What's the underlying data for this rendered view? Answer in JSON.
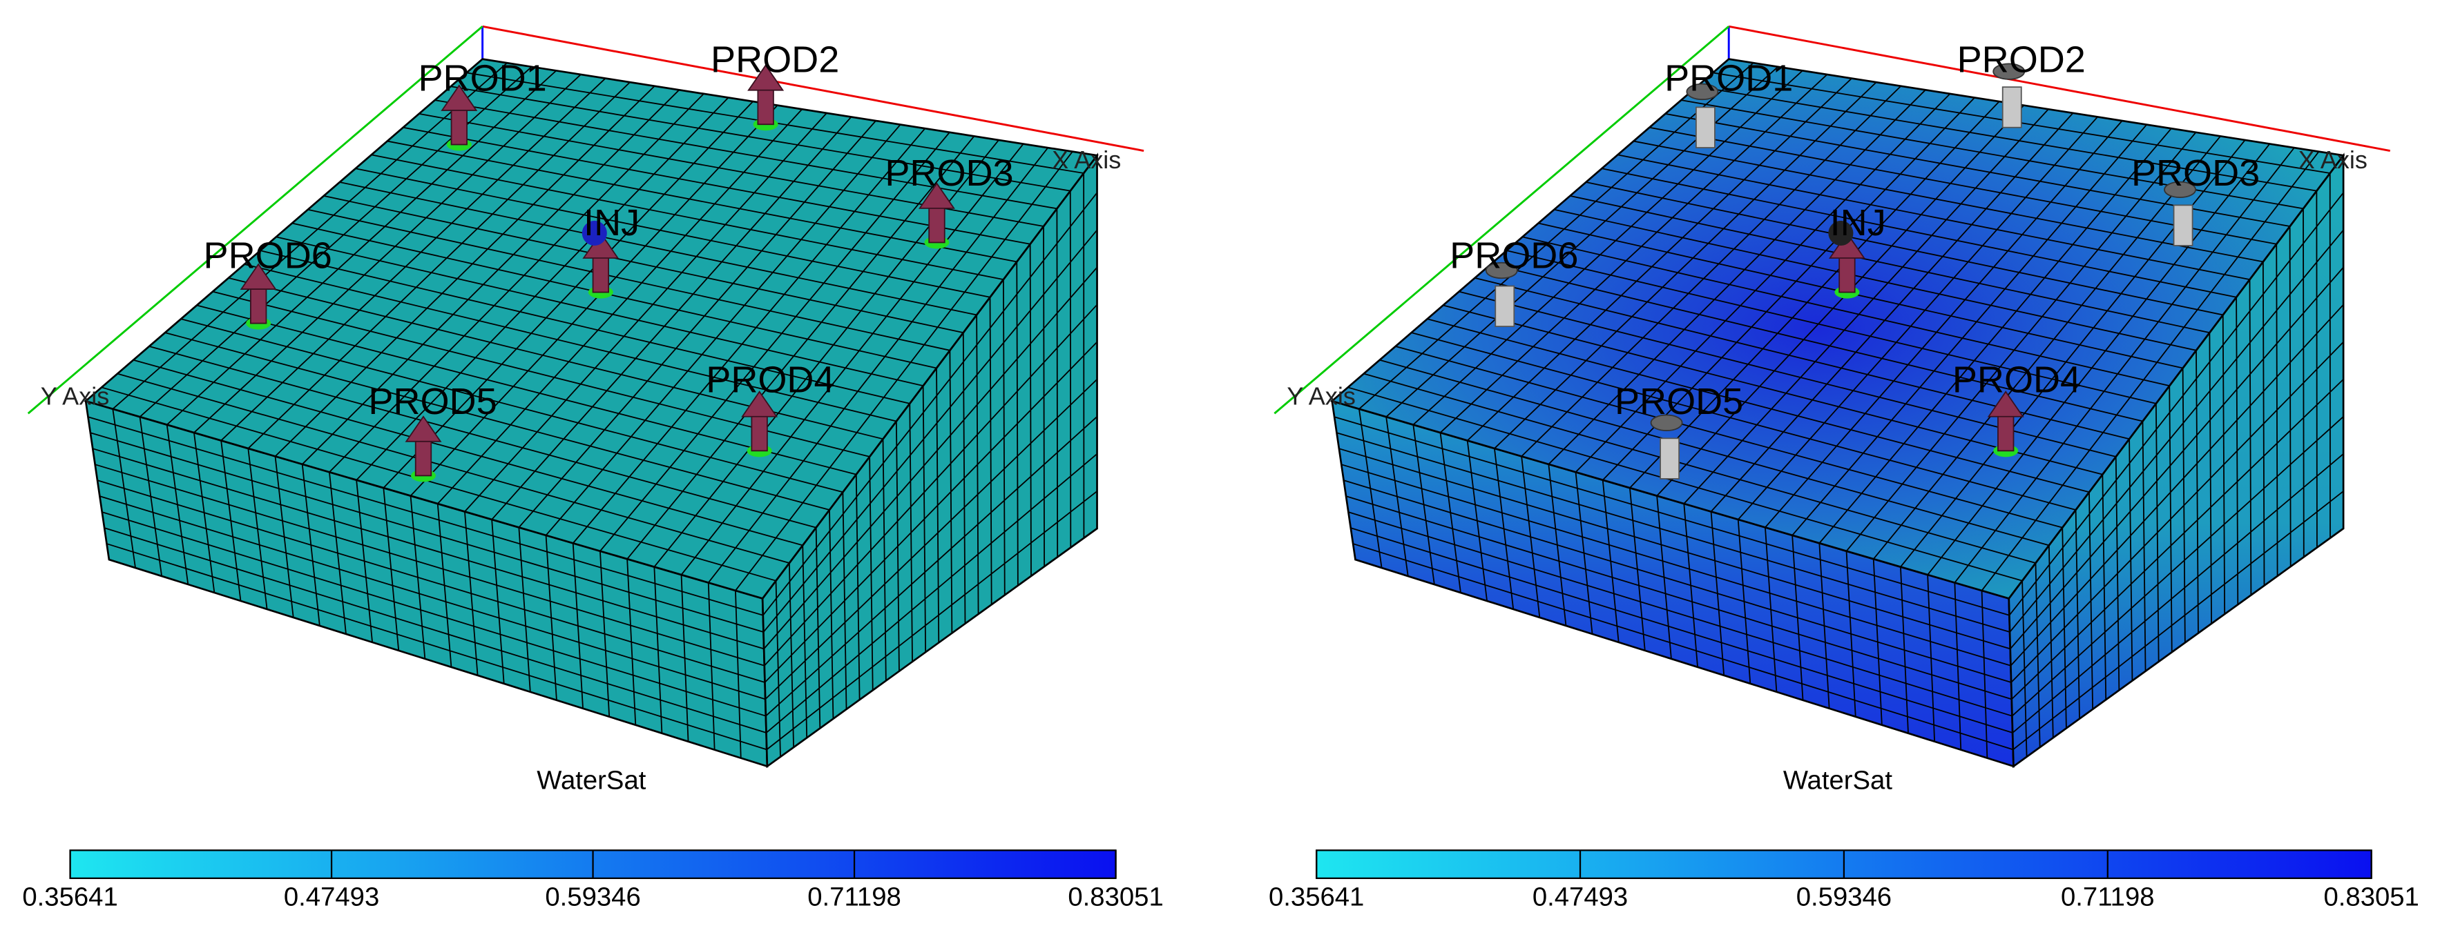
{
  "panels": [
    {
      "wells": [
        {
          "label": "PROD1"
        },
        {
          "label": "PROD2"
        },
        {
          "label": "PROD3"
        },
        {
          "label": "INJ"
        },
        {
          "label": "PROD6"
        },
        {
          "label": "PROD5"
        },
        {
          "label": "PROD4"
        }
      ],
      "x_axis_label": "X Axis",
      "y_axis_label": "Y Axis",
      "colorbar": {
        "title": "WaterSat",
        "ticks": [
          0.35641,
          0.47493,
          0.59346,
          0.71198,
          0.83051
        ]
      }
    },
    {
      "wells": [
        {
          "label": "PROD1"
        },
        {
          "label": "PROD2"
        },
        {
          "label": "PROD3"
        },
        {
          "label": "INJ"
        },
        {
          "label": "PROD6"
        },
        {
          "label": "PROD5"
        },
        {
          "label": "PROD4"
        }
      ],
      "x_axis_label": "X Axis",
      "y_axis_label": "Y Axis",
      "colorbar": {
        "title": "WaterSat",
        "ticks": [
          0.35641,
          0.47493,
          0.59346,
          0.71198,
          0.83051
        ]
      }
    }
  ]
}
